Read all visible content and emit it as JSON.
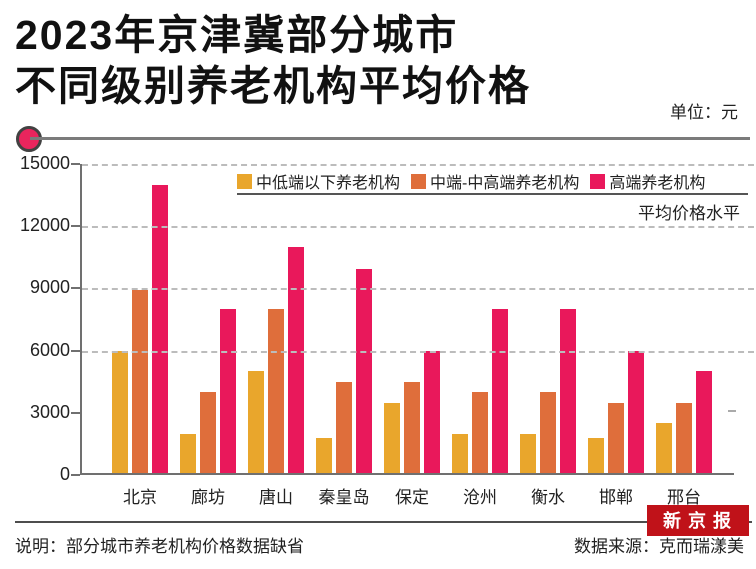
{
  "title": {
    "line1": "2023年京津冀部分城市",
    "line2": "不同级别养老机构平均价格",
    "unit_label": "单位：元"
  },
  "chart_data": {
    "type": "bar",
    "title": "2023年京津冀部分城市不同级别养老机构平均价格",
    "unit": "元",
    "categories": [
      "北京",
      "廊坊",
      "唐山",
      "秦皇岛",
      "保定",
      "沧州",
      "衡水",
      "邯郸",
      "邢台"
    ],
    "series": [
      {
        "name": "中低端以下养老机构",
        "color": "#E9A62C",
        "values": [
          5900,
          1900,
          4900,
          1700,
          3400,
          1900,
          1900,
          1700,
          2400
        ]
      },
      {
        "name": "中端-中高端养老机构",
        "color": "#DF6E3B",
        "values": [
          8850,
          3900,
          7900,
          4400,
          4400,
          3900,
          3900,
          3400,
          3400
        ]
      },
      {
        "name": "高端养老机构",
        "color": "#E9185B",
        "values": [
          13900,
          7900,
          10900,
          9850,
          5900,
          7900,
          7900,
          5900,
          4900
        ]
      }
    ],
    "xlabel": "",
    "ylabel": "",
    "ylim": [
      0,
      15000
    ],
    "yticks": [
      0,
      3000,
      6000,
      9000,
      12000,
      15000
    ],
    "gridlines_at": [
      6000,
      9000,
      12000,
      15000
    ],
    "grid": "dashed",
    "legend_position": "top-right",
    "annotation": "平均价格水平"
  },
  "footer": {
    "note": "说明：部分城市养老机构价格数据缺省",
    "source": "数据来源：克而瑞漾美",
    "brand": "新京报"
  },
  "colors": {
    "accent_dot": "#E9255D",
    "brand_red": "#C01219",
    "axis_gray": "#707070",
    "gridline_gray": "#BCBCBC"
  }
}
